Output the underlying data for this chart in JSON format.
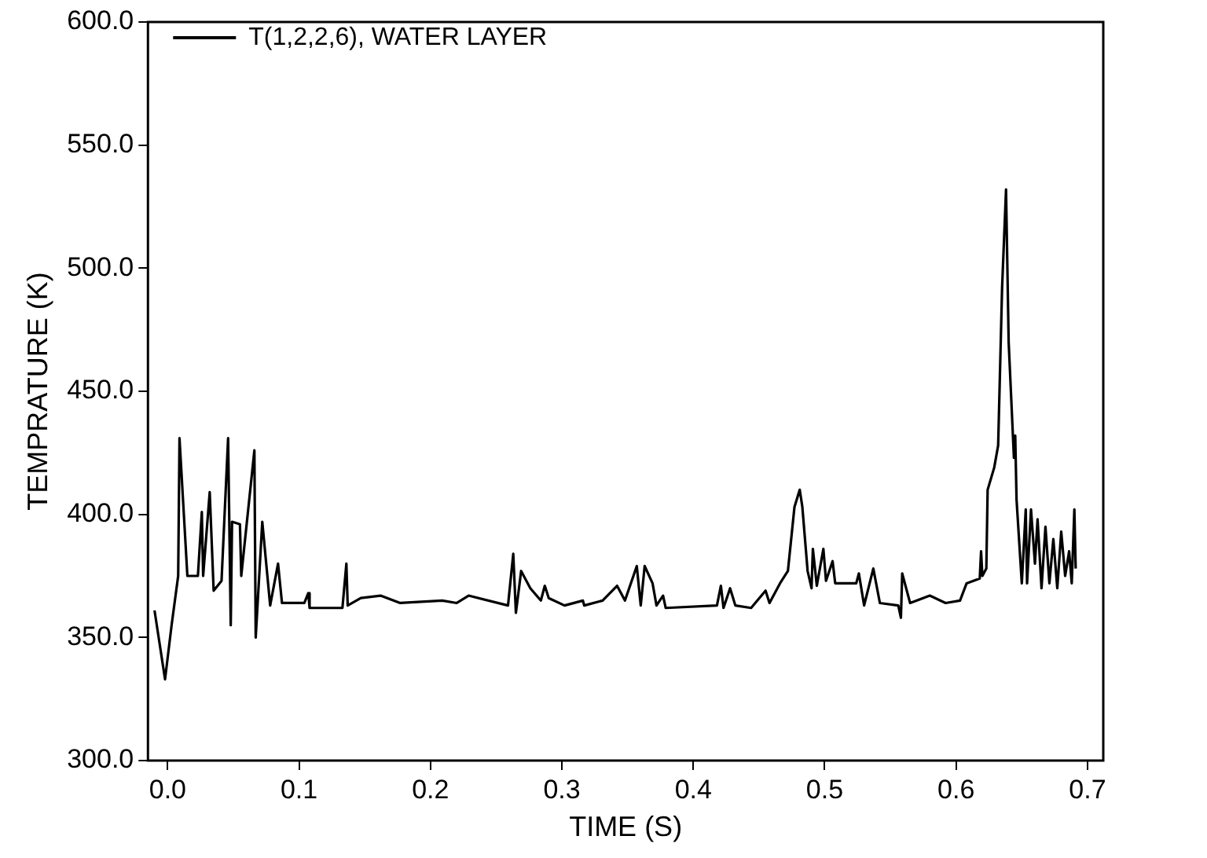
{
  "chart_data": {
    "type": "line",
    "xlabel": "TIME (S)",
    "ylabel": "TEMPRATURE (K)",
    "legend": "top left",
    "grid": false,
    "marker": "none",
    "line_style": "solid",
    "xlim": [
      -0.015,
      0.712
    ],
    "ylim": [
      300,
      600
    ],
    "xticks": [
      {
        "value": 0,
        "label": "0.0"
      },
      {
        "value": 0.1,
        "label": "0.1"
      },
      {
        "value": 0.2,
        "label": "0.2"
      },
      {
        "value": 0.3,
        "label": "0.3"
      },
      {
        "value": 0.4,
        "label": "0.4"
      },
      {
        "value": 0.5,
        "label": "0.5"
      },
      {
        "value": 0.6,
        "label": "0.6"
      },
      {
        "value": 0.7,
        "label": "0.7"
      }
    ],
    "yticks": [
      {
        "value": 300,
        "label": "300.0"
      },
      {
        "value": 350,
        "label": "350.0"
      },
      {
        "value": 400,
        "label": "400.0"
      },
      {
        "value": 450,
        "label": "450.0"
      },
      {
        "value": 500,
        "label": "500.0"
      },
      {
        "value": 550,
        "label": "550.0"
      },
      {
        "value": 600,
        "label": "600.0"
      }
    ],
    "series": [
      {
        "name": "T(1,2,2,6), WATER LAYER",
        "color": "#000000",
        "x": [
          -0.01,
          -0.002,
          0.003,
          0.008,
          0.009,
          0.015,
          0.023,
          0.026,
          0.027,
          0.032,
          0.035,
          0.041,
          0.046,
          0.048,
          0.049,
          0.055,
          0.056,
          0.066,
          0.067,
          0.072,
          0.078,
          0.084,
          0.087,
          0.104,
          0.107,
          0.108,
          0.133,
          0.136,
          0.137,
          0.147,
          0.162,
          0.177,
          0.209,
          0.22,
          0.229,
          0.259,
          0.263,
          0.265,
          0.269,
          0.276,
          0.284,
          0.287,
          0.29,
          0.302,
          0.316,
          0.317,
          0.331,
          0.342,
          0.348,
          0.357,
          0.36,
          0.363,
          0.369,
          0.372,
          0.377,
          0.379,
          0.418,
          0.421,
          0.423,
          0.428,
          0.432,
          0.444,
          0.455,
          0.458,
          0.466,
          0.472,
          0.477,
          0.481,
          0.483,
          0.487,
          0.49,
          0.491,
          0.494,
          0.499,
          0.501,
          0.506,
          0.508,
          0.524,
          0.526,
          0.53,
          0.537,
          0.542,
          0.556,
          0.558,
          0.559,
          0.565,
          0.58,
          0.592,
          0.603,
          0.608,
          0.618,
          0.619,
          0.62,
          0.623,
          0.624,
          0.629,
          0.632,
          0.635,
          0.638,
          0.64,
          0.644,
          0.645,
          0.646,
          0.65,
          0.653,
          0.654,
          0.657,
          0.66,
          0.662,
          0.665,
          0.668,
          0.671,
          0.674,
          0.677,
          0.68,
          0.683,
          0.686,
          0.688,
          0.69,
          0.691
        ],
        "values": [
          361,
          333,
          355,
          375,
          431,
          375,
          375,
          401,
          375,
          409,
          369,
          373,
          431,
          355,
          397,
          396,
          375,
          426,
          350,
          397,
          363,
          380,
          364,
          364,
          368,
          362,
          362,
          380,
          363,
          366,
          367,
          364,
          365,
          364,
          367,
          363,
          384,
          360,
          377,
          370,
          365,
          371,
          366,
          363,
          365,
          363,
          365,
          371,
          365,
          379,
          363,
          379,
          372,
          363,
          367,
          362,
          363,
          371,
          362,
          370,
          363,
          362,
          369,
          364,
          372,
          377,
          403,
          410,
          403,
          377,
          370,
          386,
          371,
          386,
          373,
          381,
          372,
          372,
          376,
          363,
          378,
          364,
          363,
          358,
          376,
          364,
          367,
          364,
          365,
          372,
          374,
          385,
          375,
          378,
          410,
          419,
          428,
          492,
          532,
          470,
          423,
          432,
          406,
          372,
          402,
          372,
          402,
          380,
          398,
          370,
          395,
          372,
          390,
          370,
          393,
          375,
          385,
          372,
          402,
          378
        ]
      }
    ]
  }
}
